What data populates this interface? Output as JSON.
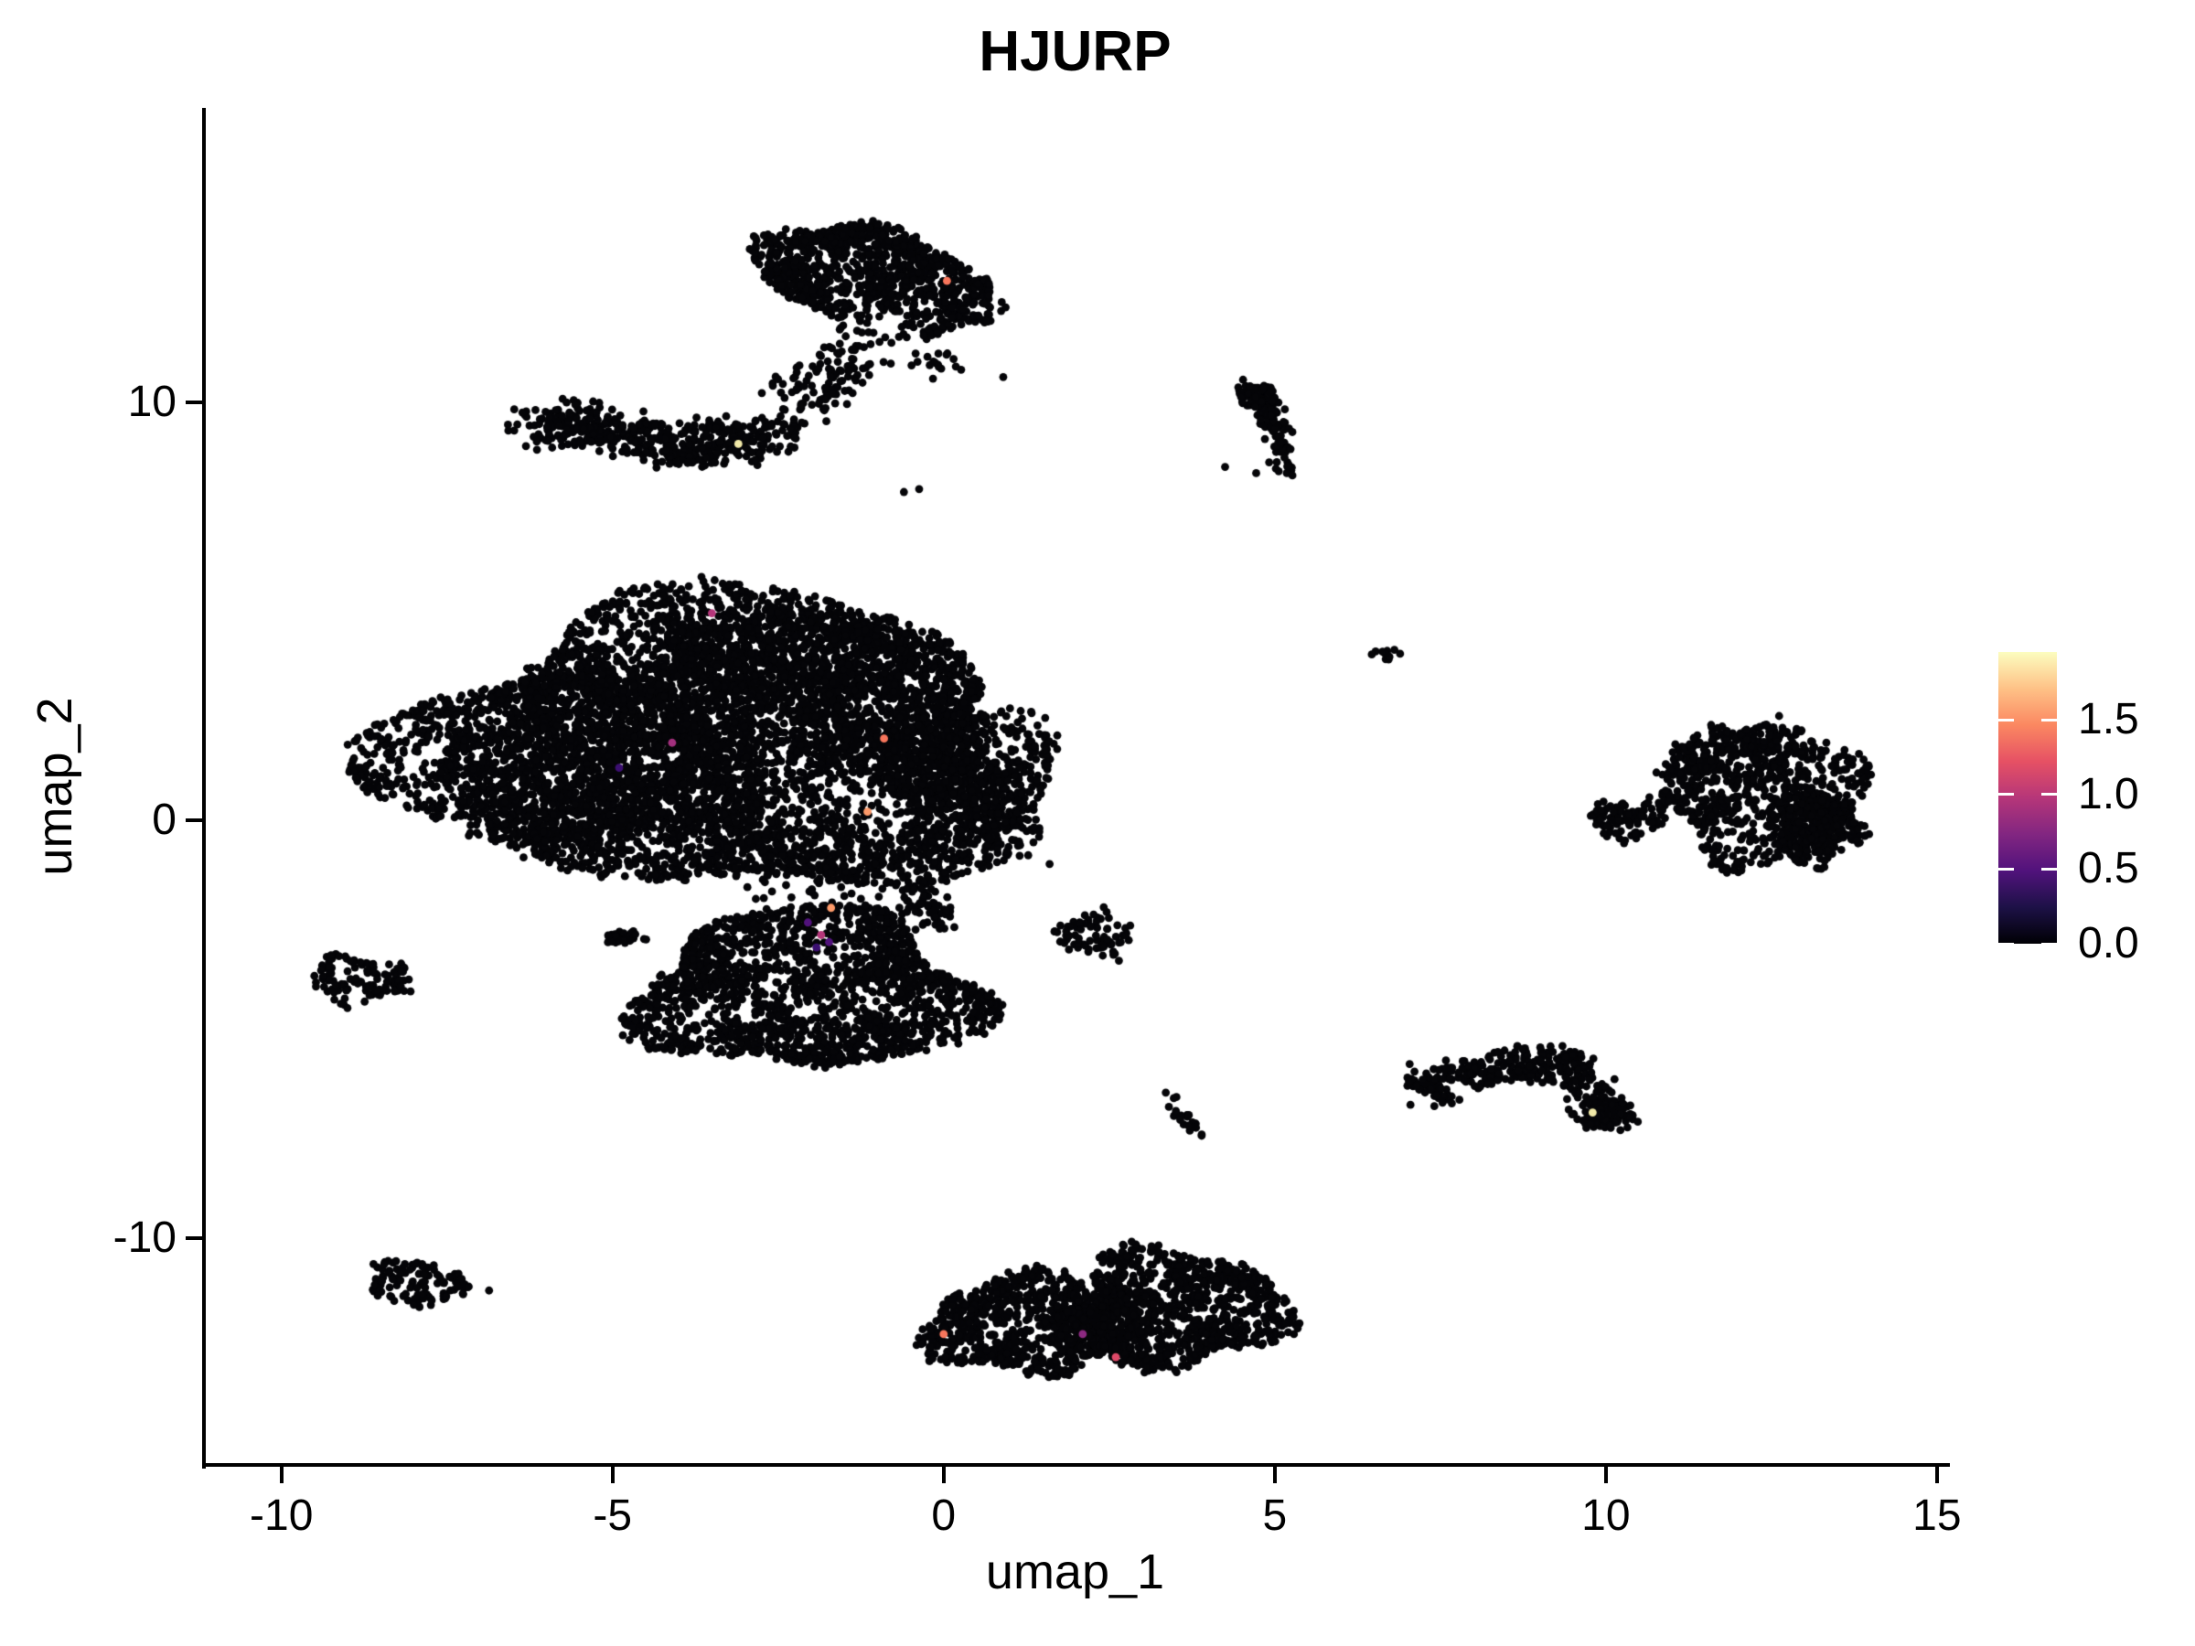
{
  "title": "HJURP",
  "axes": {
    "x_label": "umap_1",
    "y_label": "umap_2",
    "x_range": [
      -11.17,
      15.14
    ],
    "y_range": [
      -15.43,
      17.04
    ],
    "x_ticks": [
      {
        "value": -10,
        "label": "-10"
      },
      {
        "value": -5,
        "label": "-5"
      },
      {
        "value": 0,
        "label": "0"
      },
      {
        "value": 5,
        "label": "5"
      },
      {
        "value": 10,
        "label": "10"
      },
      {
        "value": 15,
        "label": "15"
      }
    ],
    "y_ticks": [
      {
        "value": -10,
        "label": "-10"
      },
      {
        "value": 0,
        "label": "0"
      },
      {
        "value": 10,
        "label": "10"
      }
    ]
  },
  "legend": {
    "tick_labels": [
      "0.0",
      "0.5",
      "1.0",
      "1.5"
    ],
    "tick_values": [
      0,
      0.5,
      1.0,
      1.5
    ],
    "max_value": 1.955,
    "colormap": [
      "#000004",
      "#1D1147",
      "#51127C",
      "#822681",
      "#B63679",
      "#E65164",
      "#FB8861",
      "#FEC287",
      "#FCFDBF"
    ]
  },
  "chart_data": {
    "type": "scatter",
    "description": "UMAP feature plot of HJURP expression; nearly all cells have zero expression (black, magma colormap minimum), with a handful of expressing cells colored by magma scale up to ~1.9",
    "point_color": "#050508",
    "point_radius": 4.4,
    "clusters": [
      {
        "name": "top-blob-main",
        "kind": "blob",
        "cx": -1.55,
        "cy": 13.25,
        "sx": 1.3,
        "sy": 1.1,
        "n": 680,
        "pow": 0.45
      },
      {
        "name": "top-blob-right",
        "kind": "blob",
        "cx": 0.0,
        "cy": 12.55,
        "sx": 0.8,
        "sy": 0.95,
        "n": 300,
        "pow": 0.5
      },
      {
        "name": "top-tail",
        "kind": "path",
        "pts": [
          [
            -1.2,
            12.0
          ],
          [
            -1.5,
            11.1
          ],
          [
            -2.0,
            10.5
          ],
          [
            -2.45,
            10.15
          ]
        ],
        "spread": 0.33,
        "n": 70
      },
      {
        "name": "top-tail-sparse",
        "kind": "path",
        "pts": [
          [
            -0.9,
            11.7
          ],
          [
            -0.4,
            11.1
          ],
          [
            0.25,
            10.75
          ]
        ],
        "spread": 0.3,
        "n": 26
      },
      {
        "name": "left-arm",
        "kind": "path",
        "pts": [
          [
            -6.15,
            9.3
          ],
          [
            -5.5,
            9.55
          ],
          [
            -4.85,
            9.2
          ],
          [
            -4.05,
            8.95
          ],
          [
            -3.25,
            9.05
          ],
          [
            -2.6,
            9.15
          ]
        ],
        "spread": 0.42,
        "n": 500
      },
      {
        "name": "arm-trail",
        "kind": "path",
        "pts": [
          [
            -2.35,
            9.45
          ],
          [
            -1.9,
            9.95
          ],
          [
            -1.5,
            10.45
          ],
          [
            -1.15,
            10.9
          ]
        ],
        "spread": 0.27,
        "n": 55
      },
      {
        "name": "comma",
        "kind": "path",
        "pts": [
          [
            4.6,
            10.3
          ],
          [
            4.85,
            9.95
          ],
          [
            5.0,
            9.4
          ],
          [
            5.1,
            8.85
          ],
          [
            5.15,
            8.3
          ]
        ],
        "spread": 0.17,
        "n": 120
      },
      {
        "name": "comma-head",
        "kind": "blob",
        "cx": 4.7,
        "cy": 10.15,
        "sx": 0.3,
        "sy": 0.26,
        "n": 60,
        "pow": 0.5
      },
      {
        "name": "central-main",
        "kind": "blob",
        "cx": -3.4,
        "cy": 1.75,
        "sx": 4.75,
        "sy": 3.55,
        "n": 4600,
        "pow": 0.52
      },
      {
        "name": "central-left-dense",
        "kind": "blob",
        "cx": -5.1,
        "cy": 1.5,
        "sx": 2.4,
        "sy": 2.1,
        "n": 1150,
        "pow": 0.55
      },
      {
        "name": "central-top-band",
        "kind": "blob",
        "cx": -2.3,
        "cy": 3.8,
        "sx": 2.3,
        "sy": 1.35,
        "n": 780,
        "pow": 0.55
      },
      {
        "name": "central-right-lobe",
        "kind": "blob",
        "cx": 0.3,
        "cy": 1.15,
        "sx": 1.3,
        "sy": 1.95,
        "n": 720,
        "pow": 0.55
      },
      {
        "name": "central-bottom-tail",
        "kind": "path",
        "pts": [
          [
            -0.95,
            -0.7
          ],
          [
            -0.6,
            -1.35
          ],
          [
            -0.3,
            -1.95
          ],
          [
            -0.1,
            -2.45
          ]
        ],
        "spread": 0.28,
        "n": 85
      },
      {
        "name": "central-lower-scatter",
        "kind": "blob",
        "cx": -1.7,
        "cy": -1.15,
        "sx": 1.35,
        "sy": 0.85,
        "n": 110,
        "pow": 0.6
      },
      {
        "name": "lower-bowl-rim",
        "kind": "blob",
        "cx": -2.05,
        "cy": -4.1,
        "sx": 2.55,
        "sy": 1.9,
        "n": 1500,
        "pow": 0.33
      },
      {
        "name": "lower-bowl-fill",
        "kind": "blob",
        "cx": -2.0,
        "cy": -4.0,
        "sx": 2.2,
        "sy": 1.6,
        "n": 330,
        "pow": 0.75
      },
      {
        "name": "lower-side-tiny",
        "kind": "blob",
        "cx": -4.85,
        "cy": -2.8,
        "sx": 0.3,
        "sy": 0.2,
        "n": 28,
        "pow": 0.5
      },
      {
        "name": "left-small",
        "kind": "blob",
        "cx": -8.8,
        "cy": -3.82,
        "sx": 0.75,
        "sy": 0.55,
        "n": 120,
        "pow": 0.45
      },
      {
        "name": "mid-small",
        "kind": "blob",
        "cx": 2.3,
        "cy": -2.75,
        "sx": 0.62,
        "sy": 0.58,
        "n": 75,
        "pow": 0.5
      },
      {
        "name": "mid-streak",
        "kind": "path",
        "pts": [
          [
            3.35,
            -6.55
          ],
          [
            3.55,
            -6.95
          ],
          [
            3.7,
            -7.2
          ],
          [
            3.9,
            -7.55
          ]
        ],
        "spread": 0.12,
        "n": 24
      },
      {
        "name": "left-bottom",
        "kind": "blob",
        "cx": -7.9,
        "cy": -11.1,
        "sx": 0.88,
        "sy": 0.5,
        "rot": -14,
        "n": 115,
        "pow": 0.45
      },
      {
        "name": "bottom-left-lobe",
        "kind": "blob",
        "cx": 1.15,
        "cy": -12.1,
        "sx": 1.4,
        "sy": 1.2,
        "n": 760,
        "pow": 0.42
      },
      {
        "name": "bottom-right-lobe",
        "kind": "blob",
        "cx": 3.55,
        "cy": -11.7,
        "sx": 1.6,
        "sy": 1.4,
        "n": 950,
        "pow": 0.46
      },
      {
        "name": "bottom-bridge",
        "kind": "blob",
        "cx": 2.35,
        "cy": -12.05,
        "sx": 0.75,
        "sy": 0.85,
        "n": 160,
        "pow": 0.6
      },
      {
        "name": "bottom-top-sparse",
        "kind": "path",
        "pts": [
          [
            2.7,
            -10.5
          ],
          [
            2.9,
            -9.95
          ]
        ],
        "spread": 0.17,
        "n": 9
      },
      {
        "name": "right-kidney-main",
        "kind": "blob",
        "cx": 12.35,
        "cy": 0.55,
        "sx": 1.5,
        "sy": 1.55,
        "n": 640,
        "pow": 0.48
      },
      {
        "name": "right-kidney-top",
        "kind": "path",
        "pts": [
          [
            11.05,
            1.15
          ],
          [
            11.55,
            1.75
          ],
          [
            12.25,
            2.05
          ],
          [
            12.95,
            1.9
          ]
        ],
        "spread": 0.33,
        "n": 170
      },
      {
        "name": "right-kidney-right",
        "kind": "blob",
        "cx": 13.2,
        "cy": -0.15,
        "sx": 0.62,
        "sy": 0.95,
        "n": 280,
        "pow": 0.55
      },
      {
        "name": "right-appendage",
        "kind": "blob",
        "cx": 10.3,
        "cy": 0.0,
        "sx": 0.55,
        "sy": 0.5,
        "n": 90,
        "pow": 0.5
      },
      {
        "name": "right-connector",
        "kind": "path",
        "pts": [
          [
            10.75,
            0.25
          ],
          [
            11.0,
            0.7
          ]
        ],
        "spread": 0.18,
        "n": 18
      },
      {
        "name": "right-lower",
        "kind": "path",
        "pts": [
          [
            7.2,
            -6.45
          ],
          [
            7.65,
            -6.2
          ],
          [
            8.25,
            -6.0
          ],
          [
            8.85,
            -5.75
          ],
          [
            9.3,
            -5.85
          ],
          [
            9.6,
            -6.3
          ],
          [
            9.95,
            -6.9
          ],
          [
            10.1,
            -7.2
          ]
        ],
        "spread": 0.36,
        "n": 380
      },
      {
        "name": "right-lower-tip",
        "kind": "blob",
        "cx": 9.95,
        "cy": -7.1,
        "sx": 0.32,
        "sy": 0.27,
        "n": 55,
        "pow": 0.5
      },
      {
        "name": "tiny-pair",
        "kind": "blob",
        "cx": 6.65,
        "cy": 4.0,
        "sx": 0.2,
        "sy": 0.17,
        "n": 12,
        "pow": 0.5
      },
      {
        "name": "strays",
        "kind": "points",
        "pts": [
          [
            -0.6,
            7.85
          ],
          [
            -0.37,
            7.92
          ],
          [
            -8.05,
            -4.1
          ],
          [
            4.25,
            8.45
          ],
          [
            4.72,
            8.3
          ],
          [
            1.6,
            -1.05
          ],
          [
            0.9,
            10.6
          ]
        ]
      }
    ],
    "expressing_cells": [
      {
        "x": -3.1,
        "y": 9.0,
        "color": "#F1E9A8"
      },
      {
        "x": 0.05,
        "y": 12.9,
        "color": "#F8765C"
      },
      {
        "x": -3.5,
        "y": 4.95,
        "color": "#B5367A"
      },
      {
        "x": -4.1,
        "y": 1.85,
        "color": "#A3307E"
      },
      {
        "x": -4.9,
        "y": 1.25,
        "color": "#3B0F70"
      },
      {
        "x": -0.9,
        "y": 1.95,
        "color": "#F8765C"
      },
      {
        "x": -1.15,
        "y": 0.2,
        "color": "#FD9A6A"
      },
      {
        "x": -1.7,
        "y": -2.1,
        "color": "#FD9A6A"
      },
      {
        "x": -2.05,
        "y": -2.45,
        "color": "#51127C"
      },
      {
        "x": -1.85,
        "y": -2.75,
        "color": "#B5367A"
      },
      {
        "x": -1.92,
        "y": -3.05,
        "color": "#3B0F70"
      },
      {
        "x": -1.73,
        "y": -2.92,
        "color": "#51127C"
      },
      {
        "x": 0.0,
        "y": -12.3,
        "color": "#F8765C"
      },
      {
        "x": 2.1,
        "y": -12.3,
        "color": "#8C2981"
      },
      {
        "x": 2.6,
        "y": -12.85,
        "color": "#DE4968"
      },
      {
        "x": 9.8,
        "y": -7.0,
        "color": "#F1E9A8"
      }
    ]
  }
}
